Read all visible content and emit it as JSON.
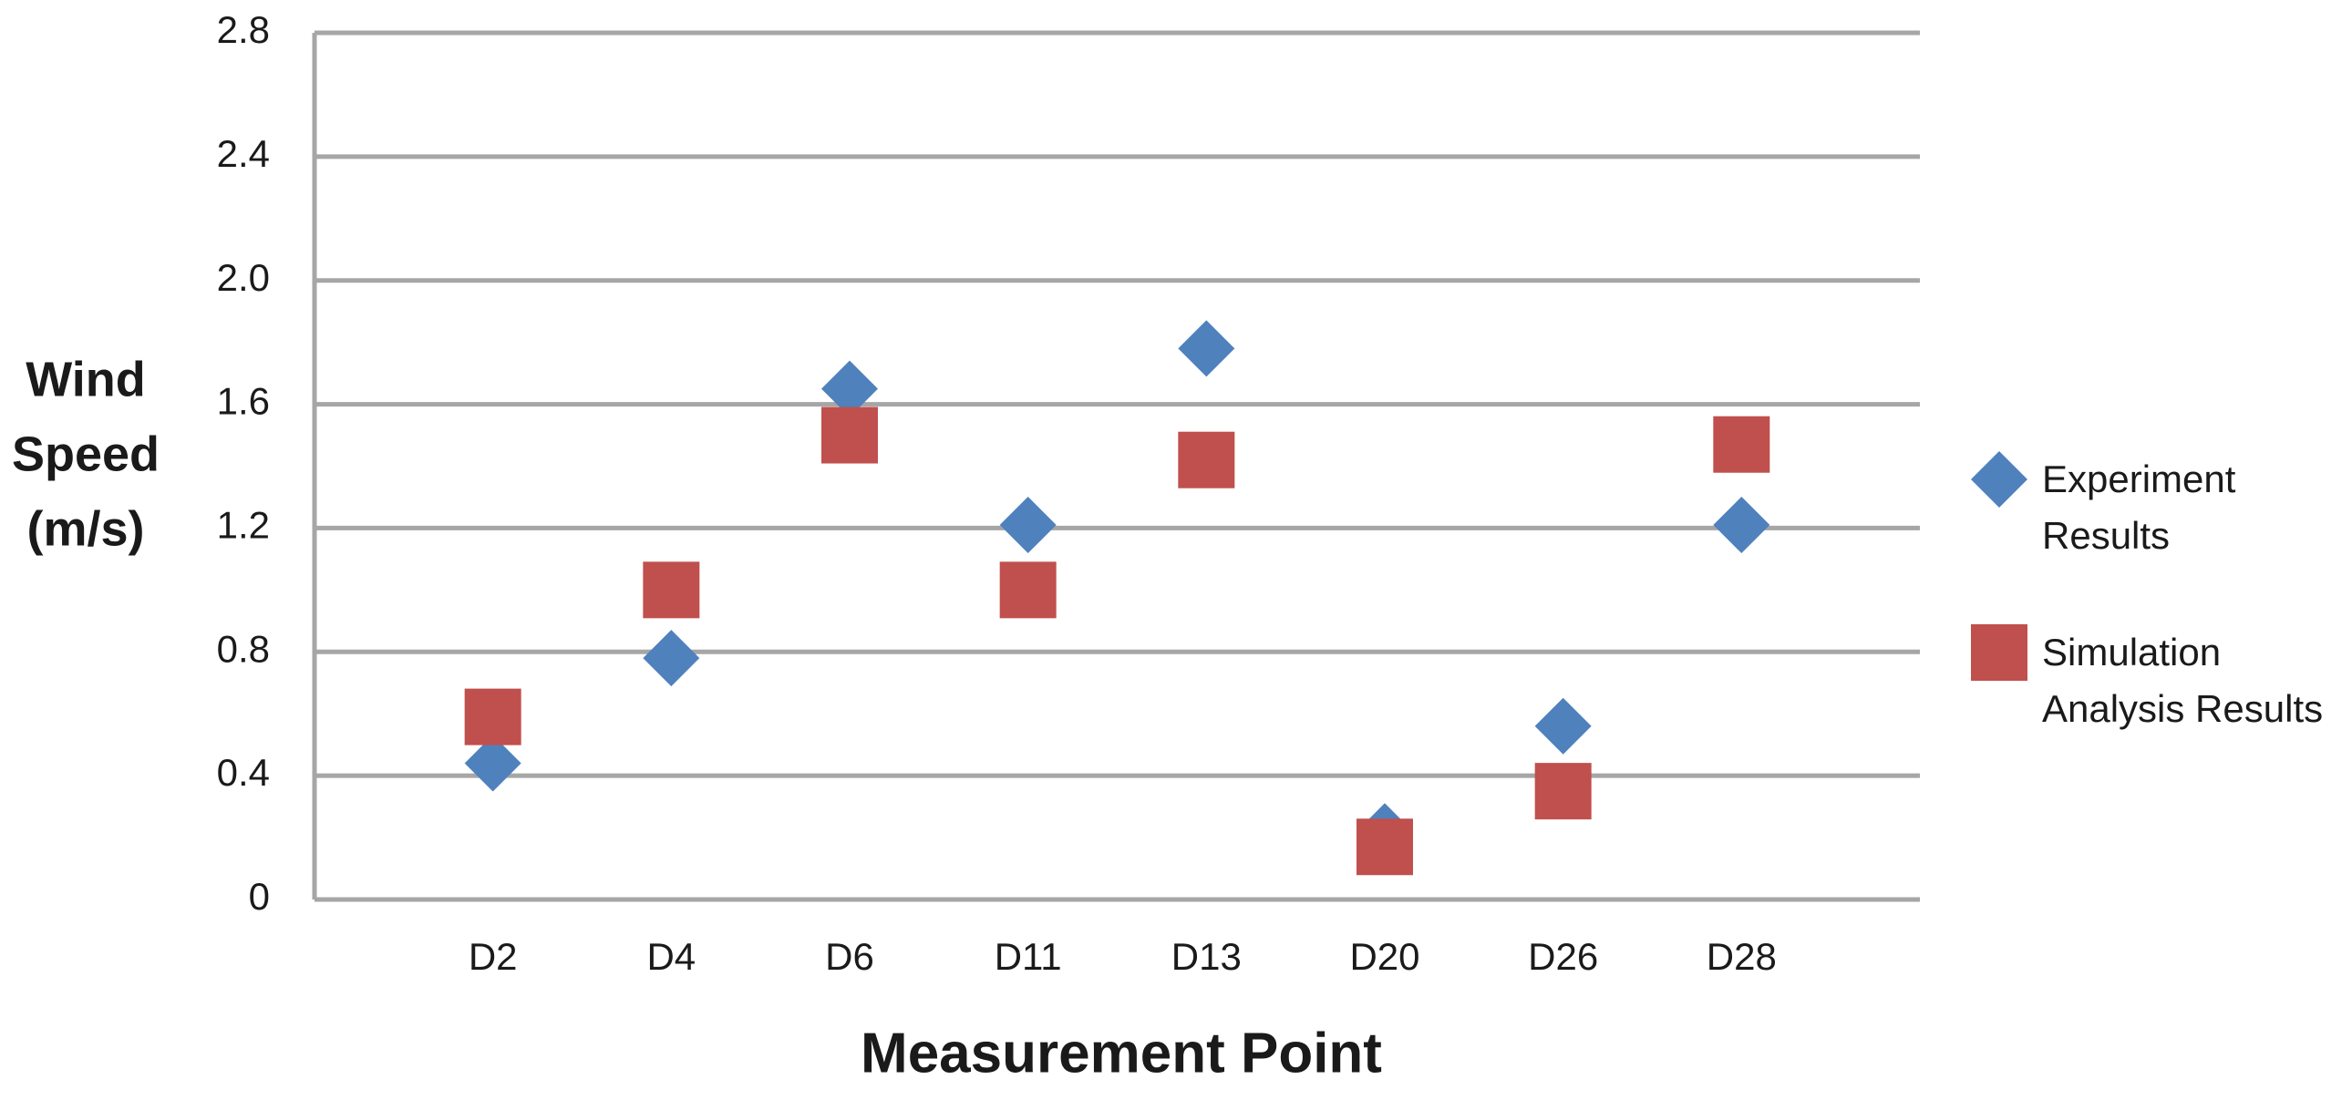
{
  "chart_data": {
    "type": "scatter",
    "ylabel": [
      "Wind",
      "Speed",
      "(m/s)"
    ],
    "xlabel": "Measurement Point",
    "categories": [
      "D2",
      "D4",
      "D6",
      "D11",
      "D13",
      "D20",
      "D26",
      "D28"
    ],
    "series": [
      {
        "name": "Experiment Results",
        "color": "#4f81bd",
        "marker": "diamond",
        "values": [
          0.44,
          0.78,
          1.65,
          1.21,
          1.78,
          0.22,
          0.56,
          1.21
        ]
      },
      {
        "name": "Simulation Analysis Results",
        "color": "#c0504d",
        "marker": "square",
        "values": [
          0.59,
          1.0,
          1.5,
          1.0,
          1.42,
          0.17,
          0.35,
          1.47
        ]
      }
    ],
    "ylim": [
      0,
      2.8
    ],
    "yticks": [
      0,
      0.4,
      0.8,
      1.2,
      1.6,
      {
        "value": 2,
        "label": "2.0"
      },
      2.4,
      2.8
    ],
    "grid": true,
    "legend": "right"
  }
}
